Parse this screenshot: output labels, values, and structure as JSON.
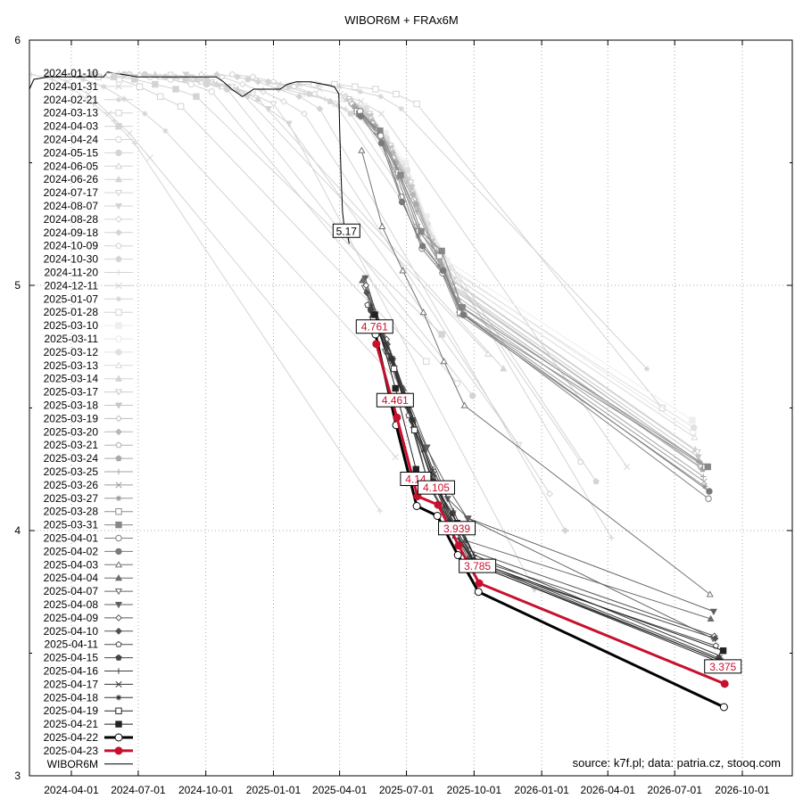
{
  "chart_data": {
    "type": "line",
    "title": "WIBOR6M + FRAx6M",
    "source_note": "source: k7f.pl; data: patria.cz, stooq.com",
    "xlim": [
      "2024-02-04",
      "2026-12-08"
    ],
    "ylim": [
      3,
      6
    ],
    "x_ticks": [
      "2024-04-01",
      "2024-07-01",
      "2024-10-01",
      "2025-01-01",
      "2025-04-01",
      "2025-07-01",
      "2025-10-01",
      "2026-01-01",
      "2026-04-01",
      "2026-07-01",
      "2026-10-01"
    ],
    "y_ticks": [
      "3",
      "4",
      "5",
      "6"
    ],
    "grid": true,
    "legend_placement": "left",
    "colors": {
      "old": "#d4d4d4",
      "recent_light": "#eeeeee",
      "recent_dark": "#222222",
      "black": "#000000",
      "highlight": "#c8102e"
    },
    "series": [
      {
        "name": "2024-01-10",
        "y": [
          5.86,
          5.84,
          5.8,
          5.74,
          5.67,
          5.58,
          4.08
        ]
      },
      {
        "name": "2024-01-31",
        "y": [
          5.86,
          5.83,
          5.78,
          5.7,
          5.62,
          5.52,
          4.3
        ]
      },
      {
        "name": "2024-02-21",
        "y": [
          5.86,
          5.84,
          5.81,
          5.76,
          5.7,
          5.63,
          4.55
        ]
      },
      {
        "name": "2024-03-13",
        "y": [
          5.86,
          5.85,
          5.84,
          5.81,
          5.77,
          5.73,
          4.69
        ]
      },
      {
        "name": "2024-04-03",
        "y": [
          5.86,
          5.85,
          5.84,
          5.82,
          5.8,
          5.77,
          4.8
        ]
      },
      {
        "name": "2024-04-24",
        "y": [
          5.86,
          5.86,
          5.85,
          5.84,
          5.82,
          5.79,
          4.6
        ]
      },
      {
        "name": "2024-05-15",
        "y": [
          5.86,
          5.86,
          5.85,
          5.84,
          5.82,
          5.8,
          4.55
        ]
      },
      {
        "name": "2024-06-05",
        "y": [
          5.86,
          5.85,
          5.84,
          5.83,
          5.81,
          5.78,
          4.72
        ]
      },
      {
        "name": "2024-06-26",
        "y": [
          5.86,
          5.85,
          5.84,
          5.82,
          5.8,
          5.76,
          4.66
        ]
      },
      {
        "name": "2024-07-17",
        "y": [
          5.86,
          5.85,
          5.83,
          5.81,
          5.78,
          5.74,
          4.35
        ]
      },
      {
        "name": "2024-08-07",
        "y": [
          5.86,
          5.84,
          5.81,
          5.77,
          5.72,
          5.66,
          3.76
        ]
      },
      {
        "name": "2024-08-28",
        "y": [
          5.86,
          5.85,
          5.82,
          5.79,
          5.75,
          5.7,
          4.15
        ]
      },
      {
        "name": "2024-09-18",
        "y": [
          5.86,
          5.85,
          5.83,
          5.8,
          5.77,
          5.72,
          4.0
        ]
      },
      {
        "name": "2024-10-09",
        "y": [
          5.86,
          5.85,
          5.83,
          5.81,
          5.78,
          5.74,
          4.28
        ]
      },
      {
        "name": "2024-10-30",
        "y": [
          5.84,
          5.83,
          5.81,
          5.78,
          5.75,
          5.7,
          4.2
        ]
      },
      {
        "name": "2024-11-20",
        "y": [
          5.8,
          5.8,
          5.78,
          5.76,
          5.72,
          5.66,
          3.97
        ]
      },
      {
        "name": "2024-12-11",
        "y": [
          5.82,
          5.82,
          5.8,
          5.78,
          5.75,
          5.7,
          4.26
        ]
      },
      {
        "name": "2025-01-07",
        "y": [
          5.82,
          5.82,
          5.81,
          5.79,
          5.77,
          5.72,
          4.66
        ]
      },
      {
        "name": "2025-01-28",
        "y": [
          5.82,
          5.82,
          5.81,
          5.8,
          5.78,
          5.74,
          4.5
        ]
      },
      {
        "name": "2025-03-10",
        "y": [
          5.76,
          5.73,
          5.62,
          5.5,
          5.28,
          5.1,
          4.45
        ]
      },
      {
        "name": "2025-03-11",
        "y": [
          5.76,
          5.72,
          5.6,
          5.48,
          5.25,
          5.08,
          4.4
        ]
      },
      {
        "name": "2025-03-12",
        "y": [
          5.77,
          5.72,
          5.6,
          5.47,
          5.25,
          5.07,
          4.42
        ]
      },
      {
        "name": "2025-03-13",
        "y": [
          5.77,
          5.71,
          5.59,
          5.45,
          5.22,
          5.05,
          4.38
        ]
      },
      {
        "name": "2025-03-14",
        "y": [
          5.76,
          5.7,
          5.58,
          5.43,
          5.2,
          5.03,
          4.33
        ]
      },
      {
        "name": "2025-03-17",
        "y": [
          5.76,
          5.7,
          5.57,
          5.42,
          5.19,
          5.02,
          4.32
        ]
      },
      {
        "name": "2025-03-18",
        "y": [
          5.75,
          5.69,
          5.56,
          5.4,
          5.18,
          5.0,
          4.3
        ]
      },
      {
        "name": "2025-03-19",
        "y": [
          5.75,
          5.68,
          5.55,
          5.38,
          5.17,
          4.99,
          4.28
        ]
      },
      {
        "name": "2025-03-20",
        "y": [
          5.74,
          5.67,
          5.54,
          5.37,
          5.16,
          4.98,
          4.28
        ]
      },
      {
        "name": "2025-03-21",
        "y": [
          5.74,
          5.66,
          5.52,
          5.35,
          5.15,
          4.96,
          4.26
        ]
      },
      {
        "name": "2025-03-24",
        "y": [
          5.73,
          5.65,
          5.5,
          5.33,
          5.13,
          4.94,
          4.25
        ]
      },
      {
        "name": "2025-03-25",
        "y": [
          5.72,
          5.64,
          5.48,
          5.3,
          5.12,
          4.92,
          4.22
        ]
      },
      {
        "name": "2025-03-26",
        "y": [
          5.72,
          5.63,
          5.47,
          5.24,
          5.1,
          4.9,
          4.2
        ]
      },
      {
        "name": "2025-03-27",
        "y": [
          5.71,
          5.62,
          5.44,
          5.2,
          5.08,
          4.88,
          4.18
        ]
      },
      {
        "name": "2025-03-28",
        "y": [
          5.71,
          5.63,
          5.46,
          5.22,
          5.12,
          4.89,
          4.26
        ]
      },
      {
        "name": "2025-03-31",
        "y": [
          5.7,
          5.63,
          5.45,
          5.22,
          5.14,
          4.91,
          4.26
        ]
      },
      {
        "name": "2025-04-01",
        "y": [
          5.71,
          5.61,
          5.36,
          5.15,
          5.05,
          4.88,
          4.13
        ]
      },
      {
        "name": "2025-04-02",
        "y": [
          5.69,
          5.58,
          5.34,
          5.16,
          5.06,
          4.88,
          4.16
        ]
      },
      {
        "name": "2025-04-03",
        "y": [
          5.55,
          5.24,
          5.06,
          4.89,
          4.69,
          4.51,
          3.74
        ]
      },
      {
        "name": "2025-04-04",
        "y": [
          5.02,
          4.82,
          4.58,
          4.33,
          4.1,
          3.96,
          3.64
        ]
      },
      {
        "name": "2025-04-07",
        "y": [
          4.99,
          4.73,
          4.52,
          4.34,
          4.18,
          4.05,
          3.56
        ]
      },
      {
        "name": "2025-04-08",
        "y": [
          5.03,
          4.76,
          4.55,
          4.34,
          4.13,
          4.05,
          3.67
        ]
      },
      {
        "name": "2025-04-09",
        "y": [
          5.0,
          4.78,
          4.52,
          4.2,
          4.05,
          3.92,
          3.57
        ]
      },
      {
        "name": "2025-04-10",
        "y": [
          4.97,
          4.76,
          4.5,
          4.19,
          4.04,
          3.89,
          3.56
        ]
      },
      {
        "name": "2025-04-11",
        "y": [
          4.92,
          4.73,
          4.47,
          4.18,
          4.03,
          3.87,
          3.53
        ]
      },
      {
        "name": "2025-04-15",
        "y": [
          4.9,
          4.7,
          4.45,
          4.2,
          4.07,
          3.88,
          3.48
        ]
      },
      {
        "name": "2025-04-16",
        "y": [
          4.92,
          4.71,
          4.46,
          4.25,
          4.08,
          3.9,
          3.49
        ]
      },
      {
        "name": "2025-04-17",
        "y": [
          4.88,
          4.69,
          4.43,
          4.23,
          4.02,
          3.87,
          3.47
        ]
      },
      {
        "name": "2025-04-18",
        "y": [
          4.88,
          4.7,
          4.45,
          4.2,
          4.0,
          3.86,
          3.47
        ]
      },
      {
        "name": "2025-04-19",
        "y": [
          4.86,
          4.66,
          4.41,
          4.18,
          3.98,
          3.86,
          3.46
        ]
      },
      {
        "name": "2025-04-21",
        "y": [
          4.88,
          4.58,
          4.25,
          4.17,
          4.03,
          3.87,
          3.51
        ]
      },
      {
        "name": "2025-04-22",
        "y": [
          4.8,
          4.43,
          4.1,
          4.06,
          3.9,
          3.75,
          3.28
        ]
      },
      {
        "name": "2025-04-23",
        "y": [
          4.761,
          4.461,
          4.14,
          4.105,
          3.939,
          3.785,
          3.375
        ],
        "labels": [
          "4.761",
          "4.461",
          "4.14",
          "4.105",
          "3.939",
          "3.785",
          "3.375"
        ]
      }
    ],
    "wibor": {
      "name": "WIBOR6M",
      "last_label": "5.17",
      "points": [
        [
          "2024-02-04",
          5.8
        ],
        [
          "2024-02-10",
          5.84
        ],
        [
          "2024-03-01",
          5.85
        ],
        [
          "2024-05-15",
          5.85
        ],
        [
          "2024-05-20",
          5.87
        ],
        [
          "2024-06-10",
          5.86
        ],
        [
          "2024-07-01",
          5.85
        ],
        [
          "2024-08-15",
          5.85
        ],
        [
          "2024-09-01",
          5.85
        ],
        [
          "2024-10-15",
          5.85
        ],
        [
          "2024-10-25",
          5.83
        ],
        [
          "2024-11-05",
          5.8
        ],
        [
          "2024-11-20",
          5.77
        ],
        [
          "2024-12-05",
          5.8
        ],
        [
          "2024-12-20",
          5.8
        ],
        [
          "2025-01-10",
          5.8
        ],
        [
          "2025-01-20",
          5.82
        ],
        [
          "2025-02-01",
          5.83
        ],
        [
          "2025-02-20",
          5.83
        ],
        [
          "2025-03-10",
          5.82
        ],
        [
          "2025-03-25",
          5.81
        ],
        [
          "2025-03-31",
          5.78
        ],
        [
          "2025-04-01",
          5.65
        ],
        [
          "2025-04-03",
          5.45
        ],
        [
          "2025-04-05",
          5.3
        ],
        [
          "2025-04-08",
          5.22
        ],
        [
          "2025-04-10",
          5.24
        ],
        [
          "2025-04-14",
          5.17
        ]
      ]
    }
  }
}
